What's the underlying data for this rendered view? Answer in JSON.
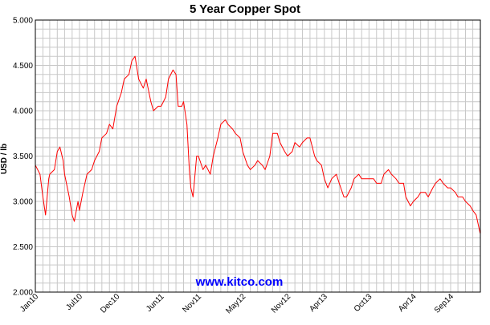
{
  "chart_data": {
    "type": "line",
    "title": "5 Year Copper Spot",
    "ylabel": "USD / lb",
    "xlabel": "",
    "ylim": [
      2.0,
      5.0
    ],
    "yticks": [
      "2.000",
      "2.500",
      "3.000",
      "3.500",
      "4.000",
      "4.500",
      "5.000"
    ],
    "y_tick_values": [
      2.0,
      2.5,
      3.0,
      3.5,
      4.0,
      4.5,
      5.0
    ],
    "xlim": [
      "2010-01",
      "2015-01"
    ],
    "xticks": [
      {
        "label": "Jan10",
        "date": "2010-01"
      },
      {
        "label": "Jul10",
        "date": "2010-07"
      },
      {
        "label": "Dec10",
        "date": "2010-12"
      },
      {
        "label": "Jun11",
        "date": "2011-06"
      },
      {
        "label": "Nov11",
        "date": "2011-11"
      },
      {
        "label": "May12",
        "date": "2012-05"
      },
      {
        "label": "Nov12",
        "date": "2012-11"
      },
      {
        "label": "Apr13",
        "date": "2013-04"
      },
      {
        "label": "Oct13",
        "date": "2013-10"
      },
      {
        "label": "Apr14",
        "date": "2014-04"
      },
      {
        "label": "Sep14",
        "date": "2014-09"
      }
    ],
    "grid": true,
    "legend": "none",
    "series": [
      {
        "color": "#ff0000",
        "points": [
          [
            "2010-01",
            3.4
          ],
          [
            "2010-01-20",
            3.3
          ],
          [
            "2010-02",
            3.05
          ],
          [
            "2010-02-12",
            2.85
          ],
          [
            "2010-02-25",
            3.25
          ],
          [
            "2010-03",
            3.3
          ],
          [
            "2010-03-20",
            3.35
          ],
          [
            "2010-04",
            3.55
          ],
          [
            "2010-04-12",
            3.6
          ],
          [
            "2010-04-25",
            3.45
          ],
          [
            "2010-05",
            3.3
          ],
          [
            "2010-05-20",
            3.05
          ],
          [
            "2010-06",
            2.85
          ],
          [
            "2010-06-10",
            2.78
          ],
          [
            "2010-06-25",
            3.0
          ],
          [
            "2010-07",
            2.9
          ],
          [
            "2010-07-15",
            3.1
          ],
          [
            "2010-08",
            3.3
          ],
          [
            "2010-08-20",
            3.35
          ],
          [
            "2010-09",
            3.45
          ],
          [
            "2010-09-20",
            3.55
          ],
          [
            "2010-10",
            3.7
          ],
          [
            "2010-10-20",
            3.75
          ],
          [
            "2010-11",
            3.85
          ],
          [
            "2010-11-15",
            3.8
          ],
          [
            "2010-12",
            4.05
          ],
          [
            "2010-12-20",
            4.2
          ],
          [
            "2011-01",
            4.35
          ],
          [
            "2011-01-20",
            4.4
          ],
          [
            "2011-02",
            4.55
          ],
          [
            "2011-02-14",
            4.6
          ],
          [
            "2011-03",
            4.35
          ],
          [
            "2011-03-20",
            4.25
          ],
          [
            "2011-04",
            4.35
          ],
          [
            "2011-04-20",
            4.1
          ],
          [
            "2011-05",
            4.0
          ],
          [
            "2011-05-20",
            4.05
          ],
          [
            "2011-06",
            4.05
          ],
          [
            "2011-06-20",
            4.15
          ],
          [
            "2011-07",
            4.35
          ],
          [
            "2011-07-20",
            4.45
          ],
          [
            "2011-08",
            4.4
          ],
          [
            "2011-08-10",
            4.05
          ],
          [
            "2011-08-25",
            4.05
          ],
          [
            "2011-09",
            4.1
          ],
          [
            "2011-09-15",
            3.85
          ],
          [
            "2011-09-25",
            3.35
          ],
          [
            "2011-10",
            3.15
          ],
          [
            "2011-10-10",
            3.05
          ],
          [
            "2011-10-25",
            3.5
          ],
          [
            "2011-11",
            3.5
          ],
          [
            "2011-11-20",
            3.35
          ],
          [
            "2011-12",
            3.4
          ],
          [
            "2011-12-20",
            3.3
          ],
          [
            "2012-01",
            3.5
          ],
          [
            "2012-01-20",
            3.7
          ],
          [
            "2012-02",
            3.85
          ],
          [
            "2012-02-20",
            3.9
          ],
          [
            "2012-03",
            3.85
          ],
          [
            "2012-03-20",
            3.8
          ],
          [
            "2012-04",
            3.75
          ],
          [
            "2012-04-20",
            3.7
          ],
          [
            "2012-05",
            3.55
          ],
          [
            "2012-05-20",
            3.4
          ],
          [
            "2012-06",
            3.35
          ],
          [
            "2012-06-20",
            3.4
          ],
          [
            "2012-07",
            3.45
          ],
          [
            "2012-07-20",
            3.4
          ],
          [
            "2012-08",
            3.35
          ],
          [
            "2012-08-20",
            3.5
          ],
          [
            "2012-09",
            3.75
          ],
          [
            "2012-09-20",
            3.75
          ],
          [
            "2012-10",
            3.65
          ],
          [
            "2012-10-20",
            3.55
          ],
          [
            "2012-11",
            3.5
          ],
          [
            "2012-11-20",
            3.55
          ],
          [
            "2012-12",
            3.65
          ],
          [
            "2012-12-20",
            3.6
          ],
          [
            "2013-01",
            3.65
          ],
          [
            "2013-01-20",
            3.7
          ],
          [
            "2013-02",
            3.7
          ],
          [
            "2013-02-20",
            3.5
          ],
          [
            "2013-03",
            3.45
          ],
          [
            "2013-03-20",
            3.4
          ],
          [
            "2013-04",
            3.25
          ],
          [
            "2013-04-15",
            3.15
          ],
          [
            "2013-05",
            3.25
          ],
          [
            "2013-05-20",
            3.3
          ],
          [
            "2013-06",
            3.2
          ],
          [
            "2013-06-20",
            3.05
          ],
          [
            "2013-07",
            3.05
          ],
          [
            "2013-07-20",
            3.15
          ],
          [
            "2013-08",
            3.25
          ],
          [
            "2013-08-20",
            3.3
          ],
          [
            "2013-09",
            3.25
          ],
          [
            "2013-09-20",
            3.25
          ],
          [
            "2013-10",
            3.25
          ],
          [
            "2013-10-20",
            3.25
          ],
          [
            "2013-11",
            3.2
          ],
          [
            "2013-11-20",
            3.2
          ],
          [
            "2013-12",
            3.3
          ],
          [
            "2013-12-20",
            3.35
          ],
          [
            "2014-01",
            3.3
          ],
          [
            "2014-01-20",
            3.25
          ],
          [
            "2014-02",
            3.2
          ],
          [
            "2014-02-20",
            3.2
          ],
          [
            "2014-03",
            3.05
          ],
          [
            "2014-03-20",
            2.95
          ],
          [
            "2014-04",
            3.0
          ],
          [
            "2014-04-20",
            3.05
          ],
          [
            "2014-05",
            3.1
          ],
          [
            "2014-05-20",
            3.1
          ],
          [
            "2014-06",
            3.05
          ],
          [
            "2014-06-20",
            3.15
          ],
          [
            "2014-07",
            3.2
          ],
          [
            "2014-07-20",
            3.25
          ],
          [
            "2014-08",
            3.2
          ],
          [
            "2014-08-20",
            3.15
          ],
          [
            "2014-09",
            3.15
          ],
          [
            "2014-09-20",
            3.1
          ],
          [
            "2014-10",
            3.05
          ],
          [
            "2014-10-20",
            3.05
          ],
          [
            "2014-11",
            3.0
          ],
          [
            "2014-11-20",
            2.95
          ],
          [
            "2014-12",
            2.9
          ],
          [
            "2014-12-15",
            2.85
          ],
          [
            "2014-12-31",
            2.65
          ]
        ]
      }
    ]
  },
  "watermark": {
    "text": "www.kitco.com",
    "color": "#0000ff"
  },
  "colors": {
    "grid": "#c8c8c8",
    "frame": "#000000",
    "line": "#ff0000"
  }
}
